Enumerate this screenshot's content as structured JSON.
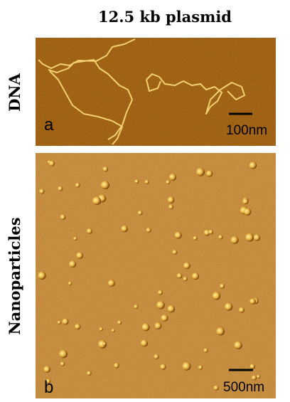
{
  "title": "12.5 kb plasmid",
  "panels": [
    {
      "row_label": "DNA",
      "letter": "a",
      "scale_bar": "100nm"
    },
    {
      "row_label": "Nanoparticles",
      "letter": "b",
      "scale_bar": "500nm"
    }
  ]
}
